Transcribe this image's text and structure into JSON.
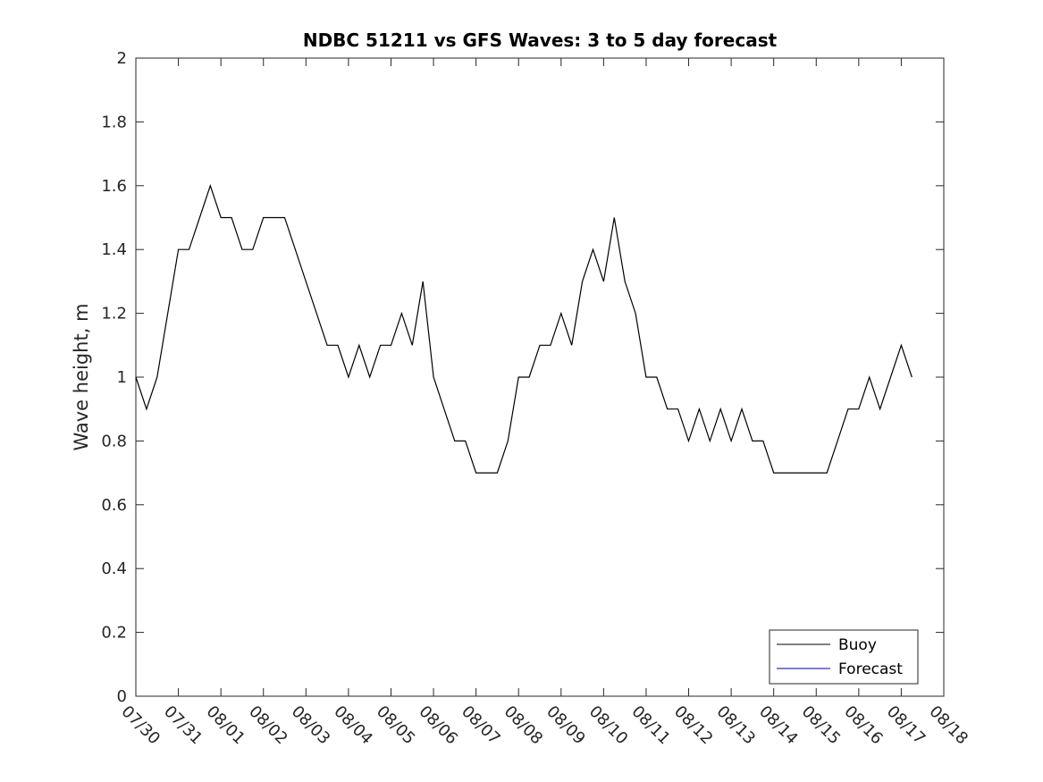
{
  "chart_data": {
    "type": "line",
    "title": "NDBC 51211 vs GFS Waves: 3 to 5 day forecast",
    "xlabel": "",
    "ylabel": "Wave height, m",
    "ylim": [
      0,
      2
    ],
    "yticks": [
      0,
      0.2,
      0.4,
      0.6,
      0.8,
      1,
      1.2,
      1.4,
      1.6,
      1.8,
      2
    ],
    "ytick_labels": [
      "0",
      "0.2",
      "0.4",
      "0.6",
      "0.8",
      "1",
      "1.2",
      "1.4",
      "1.6",
      "1.8",
      "2"
    ],
    "xlim": [
      "07/30",
      "08/18"
    ],
    "xtick_labels": [
      "07/30",
      "07/31",
      "08/01",
      "08/02",
      "08/03",
      "08/04",
      "08/05",
      "08/06",
      "08/07",
      "08/08",
      "08/09",
      "08/10",
      "08/11",
      "08/12",
      "08/13",
      "08/14",
      "08/15",
      "08/16",
      "08/17",
      "08/18"
    ],
    "grid": false,
    "legend_position": "bottom-right",
    "series": [
      {
        "name": "Buoy",
        "color": "#000000",
        "x": [
          "07/30 00:00",
          "07/30 06:00",
          "07/30 12:00",
          "07/30 18:00",
          "07/31 00:00",
          "07/31 06:00",
          "07/31 12:00",
          "07/31 18:00",
          "08/01 00:00",
          "08/01 06:00",
          "08/01 12:00",
          "08/01 18:00",
          "08/02 00:00",
          "08/02 06:00",
          "08/02 12:00",
          "08/02 18:00",
          "08/03 00:00",
          "08/03 06:00",
          "08/03 12:00",
          "08/03 18:00",
          "08/04 00:00",
          "08/04 06:00",
          "08/04 12:00",
          "08/04 18:00",
          "08/05 00:00",
          "08/05 06:00",
          "08/05 12:00",
          "08/05 18:00",
          "08/06 00:00",
          "08/06 06:00",
          "08/06 12:00",
          "08/06 18:00",
          "08/07 00:00",
          "08/07 06:00",
          "08/07 12:00",
          "08/07 18:00",
          "08/08 00:00",
          "08/08 06:00",
          "08/08 12:00",
          "08/08 18:00",
          "08/09 00:00",
          "08/09 06:00",
          "08/09 12:00",
          "08/09 18:00",
          "08/10 00:00",
          "08/10 06:00",
          "08/10 12:00",
          "08/10 18:00",
          "08/11 00:00",
          "08/11 06:00",
          "08/11 12:00",
          "08/11 18:00",
          "08/12 00:00",
          "08/12 06:00",
          "08/12 12:00",
          "08/12 18:00",
          "08/13 00:00",
          "08/13 06:00",
          "08/13 12:00",
          "08/13 18:00",
          "08/14 00:00",
          "08/14 06:00",
          "08/14 12:00",
          "08/14 18:00",
          "08/15 00:00",
          "08/15 06:00",
          "08/15 12:00",
          "08/15 18:00",
          "08/16 00:00",
          "08/16 06:00",
          "08/16 12:00",
          "08/16 18:00",
          "08/17 00:00",
          "08/17 06:00"
        ],
        "y": [
          1.0,
          0.9,
          1.0,
          1.2,
          1.4,
          1.4,
          1.5,
          1.6,
          1.5,
          1.5,
          1.4,
          1.4,
          1.5,
          1.5,
          1.5,
          1.4,
          1.3,
          1.2,
          1.1,
          1.1,
          1.0,
          1.1,
          1.0,
          1.1,
          1.1,
          1.2,
          1.1,
          1.3,
          1.0,
          0.9,
          0.8,
          0.8,
          0.7,
          0.7,
          0.7,
          0.8,
          1.0,
          1.0,
          1.1,
          1.1,
          1.2,
          1.1,
          1.3,
          1.4,
          1.3,
          1.5,
          1.3,
          1.2,
          1.0,
          1.0,
          0.9,
          0.9,
          0.8,
          0.9,
          0.8,
          0.9,
          0.8,
          0.9,
          0.8,
          0.8,
          0.7,
          0.7,
          0.7,
          0.7,
          0.7,
          0.7,
          0.8,
          0.9,
          0.9,
          1.0,
          0.9,
          1.0,
          1.1,
          1.0
        ]
      },
      {
        "name": "Forecast",
        "color": "#0000a0",
        "x": [],
        "y": []
      }
    ]
  }
}
